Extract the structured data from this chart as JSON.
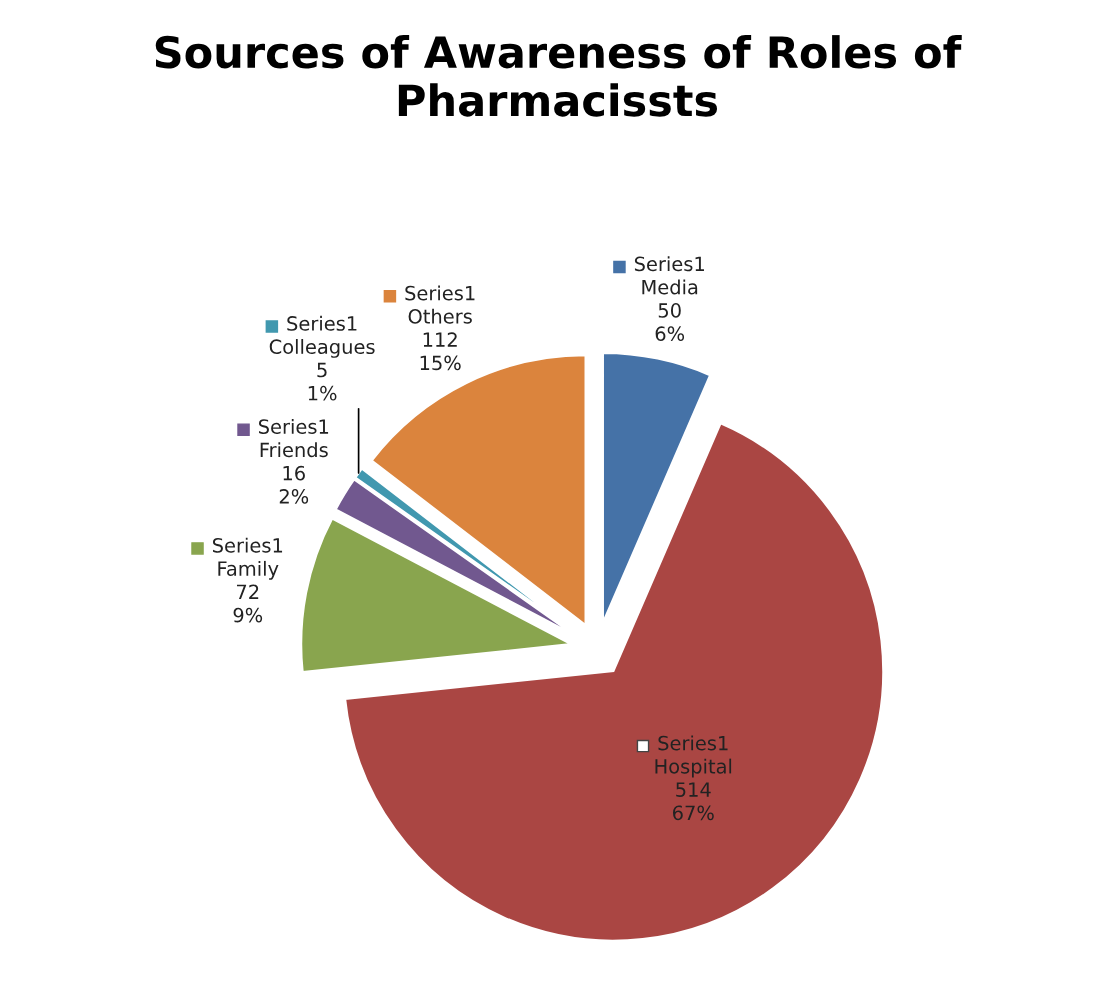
{
  "chart_data": {
    "type": "pie",
    "title": "Sources of Awareness of Roles of Pharmacissts",
    "categories": [
      "Media",
      "Hospital",
      "Family",
      "Friends",
      "Colleagues",
      "Others"
    ],
    "series": [
      {
        "name": "Series1",
        "values": [
          50,
          514,
          72,
          16,
          5,
          112
        ]
      }
    ],
    "colors": [
      "#4572a7",
      "#aa4643",
      "#89a54e",
      "#71588f",
      "#4198af",
      "#db843d"
    ],
    "data_labels": true,
    "value_labels": [
      "6%",
      "67%",
      "9%",
      "2%",
      "1%",
      "15%"
    ],
    "legend": true
  }
}
